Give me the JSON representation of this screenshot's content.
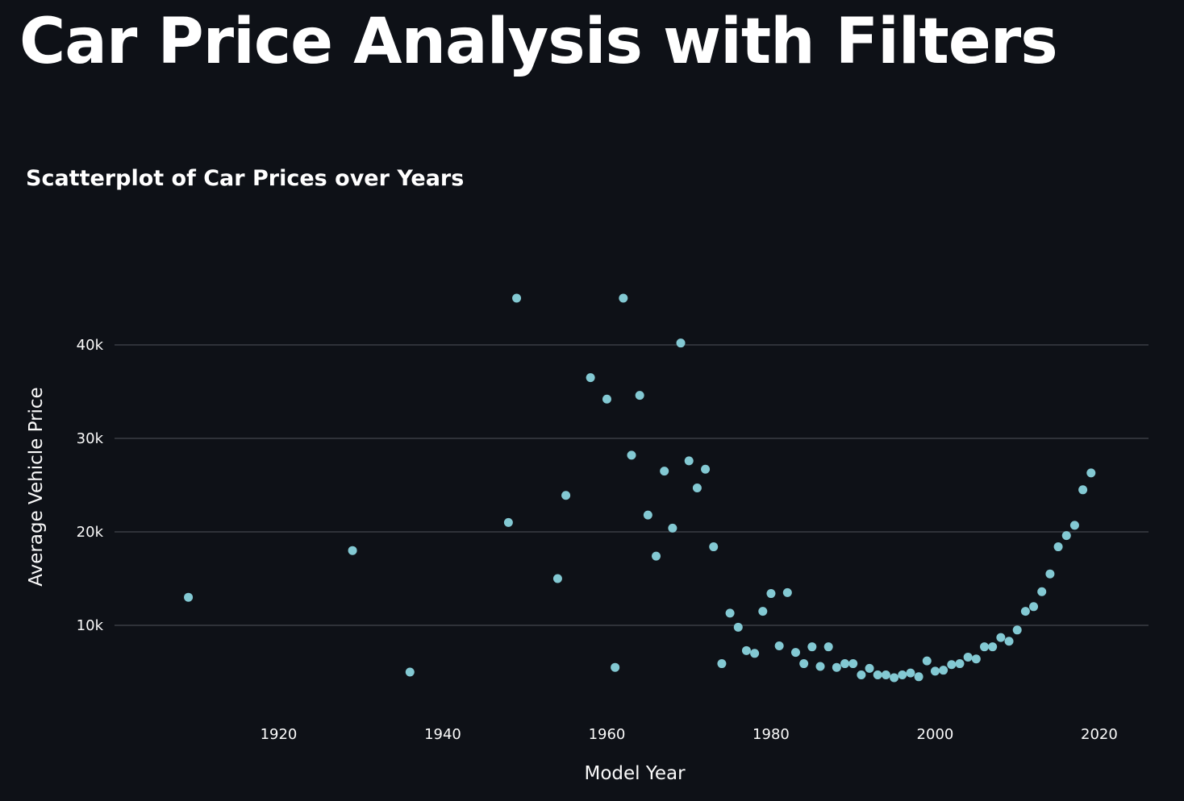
{
  "page": {
    "title": "Car Price Analysis with Filters"
  },
  "colors": {
    "background": "#0e1117",
    "text": "#fafafa",
    "grid": "#3a3d45",
    "point": "#83c9d3"
  },
  "chart_data": {
    "type": "scatter",
    "title": "Scatterplot of Car Prices over Years",
    "xlabel": "Model Year",
    "ylabel": "Average Vehicle Price",
    "xlim": [
      1900,
      2026
    ],
    "ylim": [
      0,
      50000
    ],
    "xticks": [
      1920,
      1940,
      1960,
      1980,
      2000,
      2020
    ],
    "yticks": [
      10000,
      20000,
      30000,
      40000
    ],
    "ytick_labels": [
      "10k",
      "20k",
      "30k",
      "40k"
    ],
    "grid": "horizontal",
    "series": [
      {
        "x": [
          1909,
          1929,
          1936,
          1948,
          1949,
          1954,
          1955,
          1958,
          1960,
          1961,
          1962,
          1963,
          1964,
          1965,
          1966,
          1967,
          1968,
          1969,
          1970,
          1971,
          1972,
          1973,
          1974,
          1975,
          1976,
          1977,
          1978,
          1979,
          1980,
          1981,
          1982,
          1983,
          1984,
          1985,
          1986,
          1987,
          1988,
          1989,
          1990,
          1991,
          1992,
          1993,
          1994,
          1995,
          1996,
          1997,
          1998,
          1999,
          2000,
          2001,
          2002,
          2003,
          2004,
          2005,
          2006,
          2007,
          2008,
          2009,
          2010,
          2011,
          2012,
          2013,
          2014,
          2015,
          2016,
          2017,
          2018,
          2019
        ],
        "y": [
          13000,
          18000,
          5000,
          21000,
          45000,
          15000,
          23900,
          36500,
          34200,
          5500,
          45000,
          28200,
          34600,
          21800,
          17400,
          26500,
          20400,
          40200,
          27600,
          24700,
          26700,
          18400,
          5900,
          11300,
          9800,
          7300,
          7000,
          11500,
          13400,
          7800,
          13500,
          7100,
          5900,
          7700,
          5600,
          7700,
          5500,
          5900,
          5900,
          4700,
          5400,
          4700,
          4700,
          4400,
          4700,
          4900,
          4500,
          6200,
          5100,
          5200,
          5800,
          5900,
          6600,
          6400,
          7700,
          7700,
          8700,
          8300,
          9500,
          11500,
          12000,
          13600,
          15500,
          18400,
          19600,
          20700,
          24500,
          26300
        ]
      }
    ]
  }
}
